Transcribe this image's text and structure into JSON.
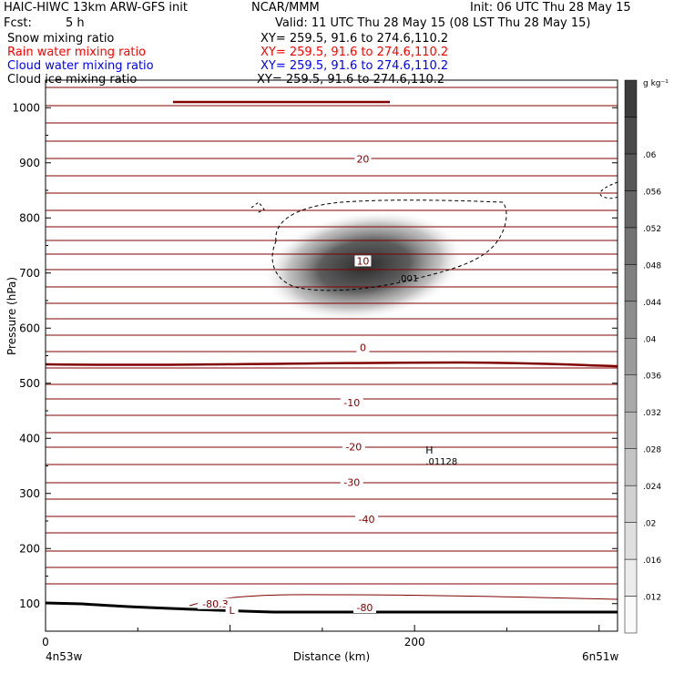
{
  "header": {
    "model": "HAIC-HIWC 13km ARW-GFS init",
    "org": "NCAR/MMM",
    "init": "Init: 06 UTC Thu 28 May 15",
    "fcst_label": "Fcst:",
    "fcst_value": "5 h",
    "valid": "Valid: 11 UTC Thu 28 May 15 (08 LST Thu 28 May 15)"
  },
  "fields": [
    {
      "name": "Snow mixing ratio",
      "xy": "XY= 259.5, 91.6 to 274.6,110.2",
      "color": "#000000"
    },
    {
      "name": "Rain water mixing ratio",
      "xy": "XY= 259.5, 91.6 to 274.6,110.2",
      "color": "#ff0000"
    },
    {
      "name": "Cloud water mixing ratio",
      "xy": "XY= 259.5, 91.6 to 274.6,110.2",
      "color": "#0000ff"
    },
    {
      "name": "Cloud ice mixing ratio",
      "xy": "XY= 259.5, 91.6 to 274.6,110.2",
      "color": "#000000"
    }
  ],
  "colors": {
    "temperature": "#800000",
    "terrain": "#000000",
    "contour": "#000000"
  },
  "chart_data": {
    "type": "heatmap",
    "xlabel": "Distance (km)",
    "ylabel": "Pressure (hPa)",
    "xlim": [
      0,
      310
    ],
    "ylim": [
      1050,
      50
    ],
    "x_ticks": [
      "0",
      "200"
    ],
    "y_ticks": [
      "100",
      "200",
      "300",
      "400",
      "500",
      "600",
      "700",
      "800",
      "900",
      "1000"
    ],
    "left_endpoint": "4n53w",
    "right_endpoint": "6n51w",
    "colorbar": {
      "unit": "g kg⁻¹",
      "labels": [
        ".012",
        ".016",
        ".02",
        ".024",
        ".028",
        ".032",
        ".036",
        ".04",
        ".044",
        ".048",
        ".052",
        ".056",
        ".06"
      ]
    },
    "snow_maximum": {
      "label": "H",
      "value": ".01128",
      "x_km": 205,
      "p_hpa": 356
    },
    "snow_contour_label": ".001",
    "temperature_labels": [
      {
        "text": "-80.3",
        "x_km": 92,
        "p_hpa": 100
      },
      {
        "text": "L",
        "x_km": 101,
        "p_hpa": 88
      },
      {
        "text": "-80",
        "x_km": 173,
        "p_hpa": 93
      },
      {
        "text": "-40",
        "x_km": 174,
        "p_hpa": 253
      },
      {
        "text": "-30",
        "x_km": 166,
        "p_hpa": 320
      },
      {
        "text": "-20",
        "x_km": 167,
        "p_hpa": 385
      },
      {
        "text": "-10",
        "x_km": 166,
        "p_hpa": 465
      },
      {
        "text": "0",
        "x_km": 172,
        "p_hpa": 565
      },
      {
        "text": "10",
        "x_km": 172,
        "p_hpa": 722
      },
      {
        "text": "20",
        "x_km": 172,
        "p_hpa": 907
      }
    ]
  }
}
